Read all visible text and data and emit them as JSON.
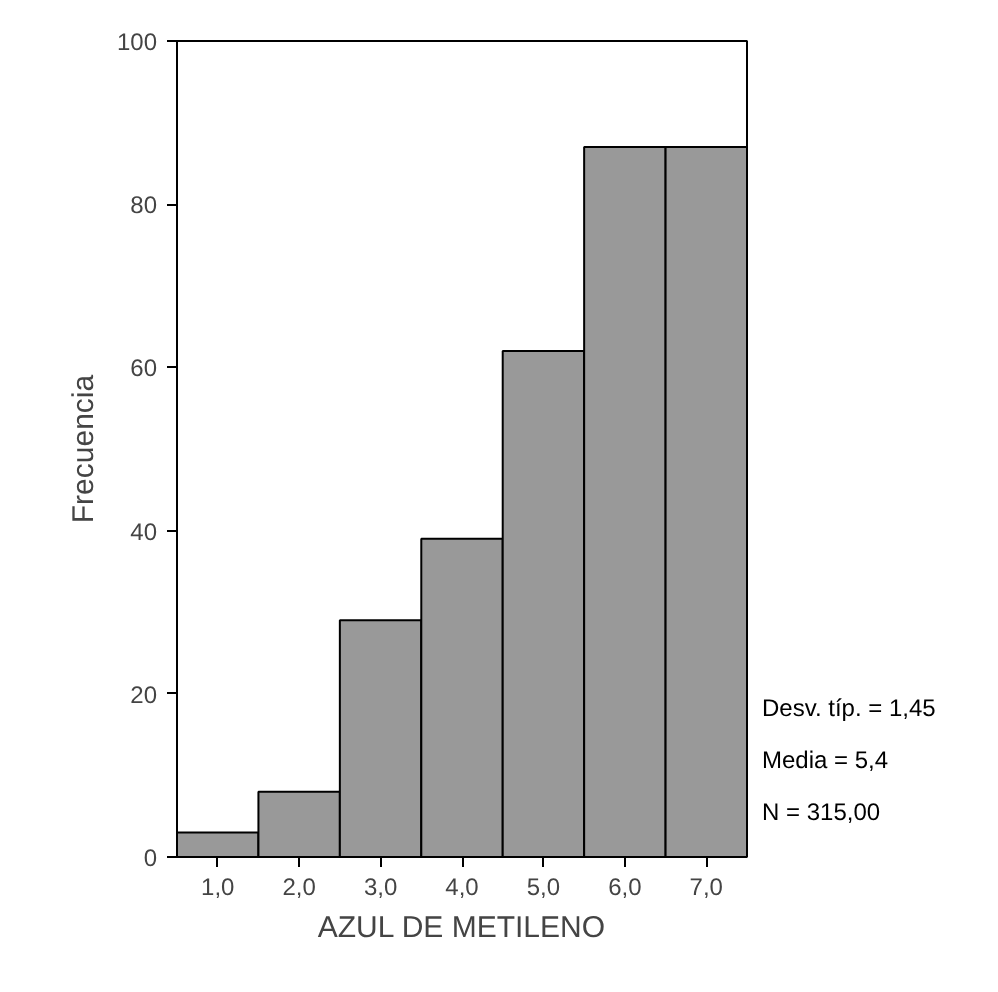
{
  "chart_data": {
    "type": "histogram",
    "xlabel": "AZUL DE METILENO",
    "ylabel": "Frecuencia",
    "bins": [
      0.5,
      1.5,
      2.5,
      3.5,
      4.5,
      5.5,
      6.5,
      7.5
    ],
    "values": [
      3,
      8,
      29,
      39,
      62,
      87,
      87
    ],
    "color": "#999999",
    "xlim": [
      0.5,
      7.5
    ],
    "xticks": [
      {
        "value": 1,
        "label": "1,0"
      },
      {
        "value": 2,
        "label": "2,0"
      },
      {
        "value": 3,
        "label": "3,0"
      },
      {
        "value": 4,
        "label": "4,0"
      },
      {
        "value": 5,
        "label": "5,0"
      },
      {
        "value": 6,
        "label": "6,0"
      },
      {
        "value": 7,
        "label": "7,0"
      }
    ],
    "ylim": [
      0,
      100
    ],
    "yticks": [
      0,
      20,
      40,
      60,
      80,
      100
    ],
    "grid": false,
    "annotations": [
      "Desv. típ. = 1,45",
      "Media = 5,4",
      "N = 315,00"
    ]
  }
}
